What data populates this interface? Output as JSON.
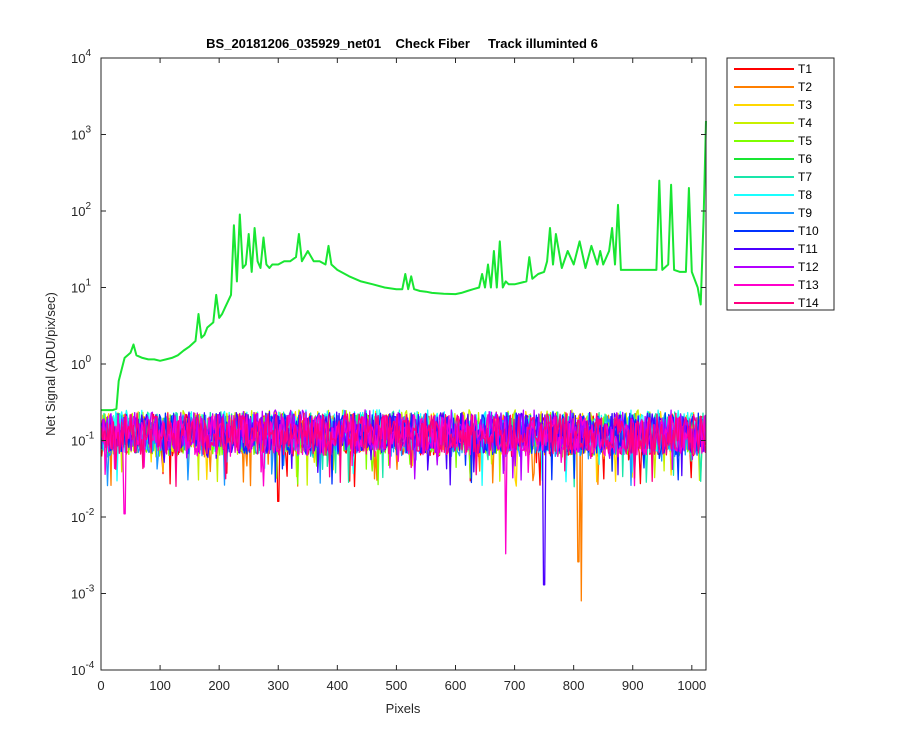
{
  "chart_data": {
    "type": "line",
    "title": "BS_20181206_035929_net01    Check Fiber     Track illuminted 6",
    "xlabel": "Pixels",
    "ylabel": "Net Signal (ADU/pix/sec)",
    "xlim": [
      0,
      1024
    ],
    "ylim": [
      0.0001,
      10000
    ],
    "yscale": "log",
    "grid": false,
    "legend_position": "outside-top-right",
    "x_ticks": [
      0,
      100,
      200,
      300,
      400,
      500,
      600,
      700,
      800,
      900,
      1000
    ],
    "y_ticks": [
      {
        "exp": -4,
        "label": "10",
        "sup": "-4"
      },
      {
        "exp": -3,
        "label": "10",
        "sup": "-3"
      },
      {
        "exp": -2,
        "label": "10",
        "sup": "-2"
      },
      {
        "exp": -1,
        "label": "10",
        "sup": "-1"
      },
      {
        "exp": 0,
        "label": "10",
        "sup": "0"
      },
      {
        "exp": 1,
        "label": "10",
        "sup": "1"
      },
      {
        "exp": 2,
        "label": "10",
        "sup": "2"
      },
      {
        "exp": 3,
        "label": "10",
        "sup": "3"
      },
      {
        "exp": 4,
        "label": "10",
        "sup": "4"
      }
    ],
    "series": [
      {
        "name": "T1",
        "color": "#ff0000"
      },
      {
        "name": "T2",
        "color": "#ff7f00"
      },
      {
        "name": "T3",
        "color": "#ffd700"
      },
      {
        "name": "T4",
        "color": "#c8f000"
      },
      {
        "name": "T5",
        "color": "#7fff00"
      },
      {
        "name": "T6",
        "color": "#19e632",
        "illuminated": true,
        "x": [
          0,
          20,
          26,
          30,
          40,
          50,
          55,
          60,
          70,
          80,
          90,
          100,
          110,
          120,
          130,
          140,
          150,
          160,
          165,
          170,
          175,
          180,
          190,
          195,
          200,
          205,
          210,
          220,
          225,
          230,
          235,
          240,
          245,
          250,
          255,
          260,
          265,
          270,
          275,
          280,
          285,
          290,
          300,
          310,
          320,
          330,
          335,
          340,
          350,
          360,
          370,
          380,
          385,
          390,
          400,
          420,
          440,
          460,
          480,
          500,
          510,
          515,
          520,
          525,
          530,
          540,
          550,
          560,
          580,
          600,
          610,
          620,
          630,
          640,
          645,
          650,
          655,
          660,
          665,
          670,
          675,
          680,
          685,
          690,
          700,
          710,
          720,
          725,
          730,
          740,
          750,
          755,
          760,
          765,
          770,
          780,
          790,
          800,
          810,
          820,
          830,
          840,
          845,
          850,
          860,
          865,
          870,
          875,
          880,
          900,
          920,
          940,
          945,
          950,
          960,
          965,
          970,
          980,
          990,
          995,
          1000,
          1010,
          1015,
          1020,
          1024
        ],
        "y": [
          0.25,
          0.25,
          0.26,
          0.6,
          1.2,
          1.4,
          1.8,
          1.3,
          1.2,
          1.15,
          1.15,
          1.1,
          1.15,
          1.2,
          1.3,
          1.5,
          1.7,
          2.0,
          4.5,
          2.2,
          2.4,
          3.0,
          3.5,
          8.0,
          4.0,
          4.5,
          5.5,
          8.0,
          65,
          12,
          90,
          18,
          20,
          50,
          16,
          60,
          22,
          18,
          45,
          20,
          18,
          20,
          20,
          22,
          22,
          25,
          50,
          22,
          30,
          22,
          22,
          20,
          35,
          20,
          17,
          14,
          12,
          11,
          10,
          9.5,
          9.5,
          15,
          9.5,
          14,
          9.5,
          9.0,
          8.8,
          8.5,
          8.3,
          8.2,
          8.5,
          9.0,
          9.5,
          10,
          15,
          10,
          20,
          10,
          30,
          10,
          40,
          10,
          12,
          11,
          11,
          11.5,
          12,
          25,
          13,
          15,
          16,
          22,
          60,
          20,
          50,
          18,
          30,
          20,
          40,
          18,
          35,
          20,
          30,
          20,
          30,
          60,
          20,
          120,
          17,
          17,
          17,
          17,
          250,
          17,
          20,
          220,
          17,
          16,
          16,
          200,
          16,
          10,
          6.0,
          80,
          1500
        ]
      },
      {
        "name": "T7",
        "color": "#19e6aa"
      },
      {
        "name": "T8",
        "color": "#19ffff"
      },
      {
        "name": "T9",
        "color": "#1a96ff"
      },
      {
        "name": "T10",
        "color": "#0033ff"
      },
      {
        "name": "T11",
        "color": "#4b00ff"
      },
      {
        "name": "T12",
        "color": "#b400ff"
      },
      {
        "name": "T13",
        "color": "#ff00cc"
      },
      {
        "name": "T14",
        "color": "#ff0080"
      }
    ],
    "noise_band": {
      "typical_low": 0.07,
      "typical_high": 0.3,
      "notable_dips": [
        {
          "series": "T13",
          "x": 40,
          "y": 0.011
        },
        {
          "series": "T1",
          "x": 300,
          "y": 0.016
        },
        {
          "series": "T13",
          "x": 685,
          "y": 0.0033
        },
        {
          "series": "T11",
          "x": 750,
          "y": 0.0013
        },
        {
          "series": "T2",
          "x": 808,
          "y": 0.0026
        },
        {
          "series": "T2",
          "x": 813,
          "y": 0.0008
        }
      ]
    }
  }
}
